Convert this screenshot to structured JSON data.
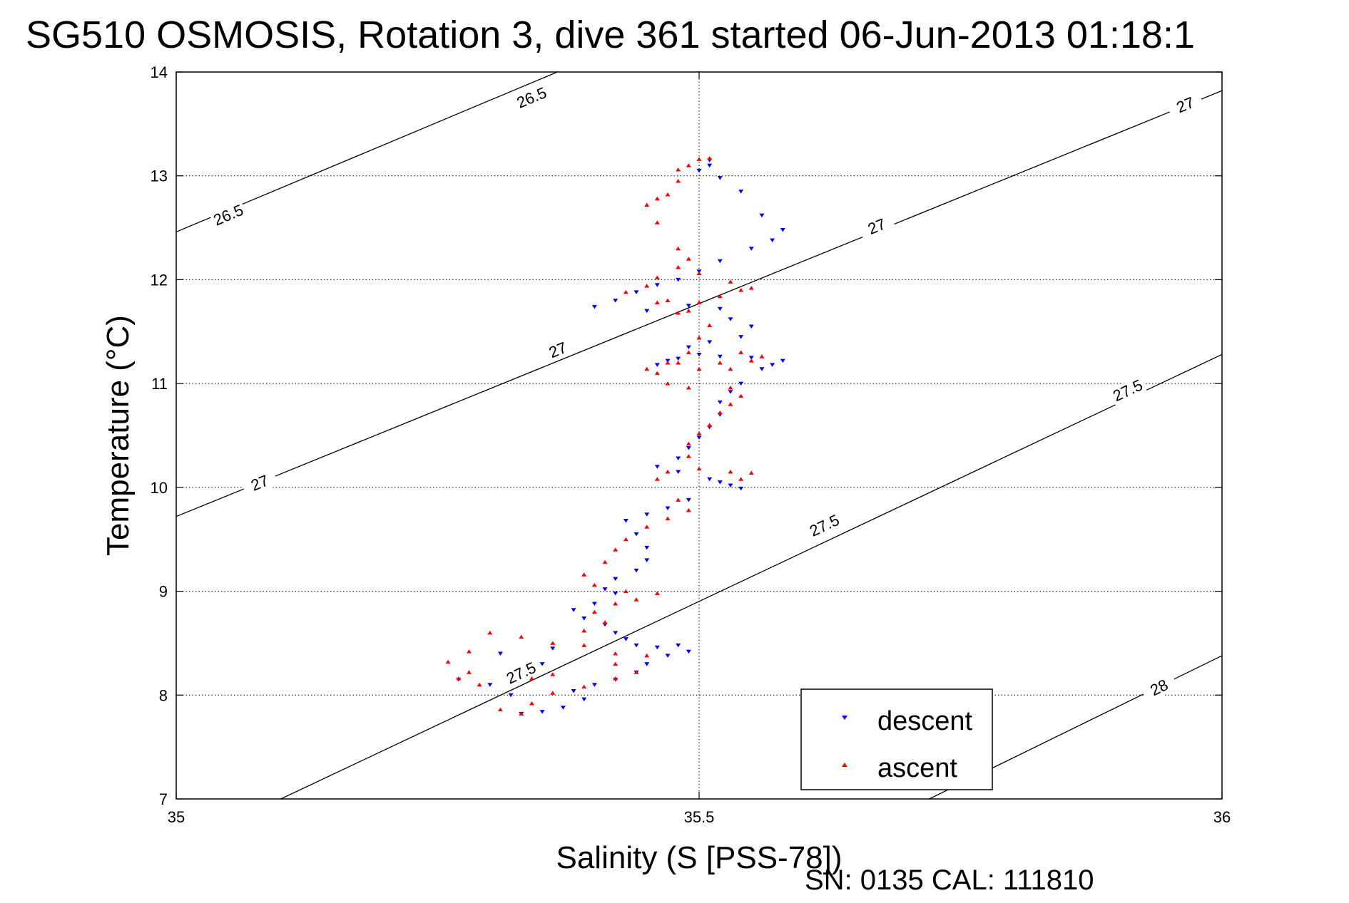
{
  "chart_data": {
    "type": "scatter",
    "title": "SG510 OSMOSIS, Rotation 3, dive 361 started 06-Jun-2013 01:18:1",
    "xlabel": "Salinity (S [PSS-78])",
    "ylabel": "Temperature (°C)",
    "footer": "SN: 0135  CAL: 111810",
    "xlim": [
      35,
      36
    ],
    "ylim": [
      7,
      14
    ],
    "x_ticks": [
      "35",
      "35.5",
      "36"
    ],
    "y_ticks": [
      "7",
      "8",
      "9",
      "10",
      "11",
      "12",
      "13",
      "14"
    ],
    "grid": "dotted",
    "legend_position": "bottom-right",
    "series": [
      {
        "name": "descent",
        "color": "#0000ff",
        "marker": "triangle-down",
        "points": [
          [
            35.51,
            13.15
          ],
          [
            35.51,
            13.1
          ],
          [
            35.5,
            13.05
          ],
          [
            35.52,
            12.98
          ],
          [
            35.54,
            12.85
          ],
          [
            35.56,
            12.62
          ],
          [
            35.58,
            12.48
          ],
          [
            35.57,
            12.38
          ],
          [
            35.55,
            12.3
          ],
          [
            35.52,
            12.18
          ],
          [
            35.5,
            12.08
          ],
          [
            35.48,
            12.0
          ],
          [
            35.46,
            11.95
          ],
          [
            35.44,
            11.88
          ],
          [
            35.42,
            11.8
          ],
          [
            35.4,
            11.74
          ],
          [
            35.45,
            11.7
          ],
          [
            35.49,
            11.75
          ],
          [
            35.52,
            11.72
          ],
          [
            35.53,
            11.62
          ],
          [
            35.55,
            11.55
          ],
          [
            35.54,
            11.45
          ],
          [
            35.51,
            11.4
          ],
          [
            35.49,
            11.35
          ],
          [
            35.5,
            11.28
          ],
          [
            35.47,
            11.22
          ],
          [
            35.46,
            11.18
          ],
          [
            35.48,
            11.24
          ],
          [
            35.52,
            11.26
          ],
          [
            35.55,
            11.25
          ],
          [
            35.57,
            11.18
          ],
          [
            35.58,
            11.22
          ],
          [
            35.56,
            11.14
          ],
          [
            35.54,
            11.0
          ],
          [
            35.53,
            10.92
          ],
          [
            35.52,
            10.82
          ],
          [
            35.52,
            10.7
          ],
          [
            35.51,
            10.58
          ],
          [
            35.5,
            10.48
          ],
          [
            35.49,
            10.38
          ],
          [
            35.48,
            10.28
          ],
          [
            35.46,
            10.2
          ],
          [
            35.48,
            10.15
          ],
          [
            35.51,
            10.08
          ],
          [
            35.53,
            10.02
          ],
          [
            35.54,
            9.99
          ],
          [
            35.52,
            10.05
          ],
          [
            35.49,
            9.88
          ],
          [
            35.47,
            9.8
          ],
          [
            35.45,
            9.74
          ],
          [
            35.43,
            9.68
          ],
          [
            35.44,
            9.55
          ],
          [
            35.45,
            9.42
          ],
          [
            35.45,
            9.3
          ],
          [
            35.44,
            9.2
          ],
          [
            35.42,
            9.12
          ],
          [
            35.41,
            9.02
          ],
          [
            35.42,
            8.98
          ],
          [
            35.4,
            8.88
          ],
          [
            35.38,
            8.82
          ],
          [
            35.39,
            8.74
          ],
          [
            35.41,
            8.68
          ],
          [
            35.42,
            8.6
          ],
          [
            35.43,
            8.54
          ],
          [
            35.44,
            8.48
          ],
          [
            35.46,
            8.46
          ],
          [
            35.48,
            8.48
          ],
          [
            35.49,
            8.42
          ],
          [
            35.47,
            8.38
          ],
          [
            35.45,
            8.3
          ],
          [
            35.44,
            8.22
          ],
          [
            35.42,
            8.15
          ],
          [
            35.4,
            8.1
          ],
          [
            35.38,
            8.04
          ],
          [
            35.39,
            7.96
          ],
          [
            35.37,
            7.88
          ],
          [
            35.35,
            7.84
          ],
          [
            35.33,
            7.82
          ],
          [
            35.32,
            8.0
          ],
          [
            35.3,
            8.1
          ],
          [
            35.27,
            8.15
          ],
          [
            35.35,
            8.3
          ],
          [
            35.31,
            8.4
          ],
          [
            35.36,
            8.45
          ]
        ]
      },
      {
        "name": "ascent",
        "color": "#ff0000",
        "marker": "triangle-up",
        "points": [
          [
            35.33,
            7.82
          ],
          [
            35.31,
            7.86
          ],
          [
            35.34,
            7.92
          ],
          [
            35.36,
            8.02
          ],
          [
            35.39,
            8.08
          ],
          [
            35.42,
            8.16
          ],
          [
            35.44,
            8.22
          ],
          [
            35.42,
            8.3
          ],
          [
            35.45,
            8.38
          ],
          [
            35.42,
            8.4
          ],
          [
            35.39,
            8.48
          ],
          [
            35.36,
            8.5
          ],
          [
            35.33,
            8.56
          ],
          [
            35.3,
            8.6
          ],
          [
            35.28,
            8.42
          ],
          [
            35.26,
            8.32
          ],
          [
            35.28,
            8.22
          ],
          [
            35.27,
            8.16
          ],
          [
            35.29,
            8.1
          ],
          [
            35.34,
            8.16
          ],
          [
            35.36,
            8.2
          ],
          [
            35.39,
            8.62
          ],
          [
            35.41,
            8.7
          ],
          [
            35.4,
            8.8
          ],
          [
            35.42,
            8.88
          ],
          [
            35.44,
            8.92
          ],
          [
            35.46,
            8.98
          ],
          [
            35.43,
            9.0
          ],
          [
            35.4,
            9.06
          ],
          [
            35.39,
            9.16
          ],
          [
            35.41,
            9.28
          ],
          [
            35.42,
            9.4
          ],
          [
            35.43,
            9.5
          ],
          [
            35.45,
            9.62
          ],
          [
            35.47,
            9.7
          ],
          [
            35.49,
            9.78
          ],
          [
            35.48,
            9.88
          ],
          [
            35.46,
            10.08
          ],
          [
            35.47,
            10.15
          ],
          [
            35.5,
            10.18
          ],
          [
            35.53,
            10.15
          ],
          [
            35.55,
            10.14
          ],
          [
            35.54,
            10.08
          ],
          [
            35.49,
            10.3
          ],
          [
            35.49,
            10.42
          ],
          [
            35.5,
            10.52
          ],
          [
            35.51,
            10.6
          ],
          [
            35.52,
            10.72
          ],
          [
            35.53,
            10.8
          ],
          [
            35.54,
            10.88
          ],
          [
            35.53,
            10.96
          ],
          [
            35.49,
            10.96
          ],
          [
            35.47,
            11.0
          ],
          [
            35.46,
            11.1
          ],
          [
            35.45,
            11.14
          ],
          [
            35.47,
            11.2
          ],
          [
            35.49,
            11.3
          ],
          [
            35.48,
            11.2
          ],
          [
            35.5,
            11.14
          ],
          [
            35.52,
            11.2
          ],
          [
            35.53,
            11.14
          ],
          [
            35.55,
            11.22
          ],
          [
            35.56,
            11.26
          ],
          [
            35.54,
            11.3
          ],
          [
            35.5,
            11.44
          ],
          [
            35.51,
            11.56
          ],
          [
            35.48,
            11.68
          ],
          [
            35.5,
            11.78
          ],
          [
            35.52,
            11.84
          ],
          [
            35.54,
            11.9
          ],
          [
            35.55,
            11.92
          ],
          [
            35.53,
            11.98
          ],
          [
            35.5,
            12.06
          ],
          [
            35.48,
            12.12
          ],
          [
            35.49,
            12.2
          ],
          [
            35.48,
            12.3
          ],
          [
            35.46,
            12.02
          ],
          [
            35.45,
            11.94
          ],
          [
            35.43,
            11.88
          ],
          [
            35.47,
            11.8
          ],
          [
            35.49,
            11.7
          ],
          [
            35.46,
            11.78
          ],
          [
            35.46,
            12.55
          ],
          [
            35.46,
            12.78
          ],
          [
            35.45,
            12.72
          ],
          [
            35.48,
            12.95
          ],
          [
            35.49,
            13.1
          ],
          [
            35.5,
            13.16
          ],
          [
            35.48,
            13.06
          ],
          [
            35.47,
            12.82
          ],
          [
            35.51,
            13.17
          ]
        ]
      }
    ],
    "contours": [
      {
        "label": "26.5",
        "points": [
          [
            35.0,
            12.46
          ],
          [
            35.4,
            14.15
          ]
        ],
        "label_positions": [
          [
            35.05,
            12.62
          ],
          [
            35.34,
            13.75
          ]
        ]
      },
      {
        "label": "27",
        "points": [
          [
            35.0,
            9.72
          ],
          [
            36.0,
            13.82
          ]
        ],
        "label_positions": [
          [
            35.08,
            10.04
          ],
          [
            35.365,
            11.32
          ],
          [
            35.67,
            12.51
          ],
          [
            35.965,
            13.68
          ]
        ]
      },
      {
        "label": "27.5",
        "points": [
          [
            35.1,
            7.0
          ],
          [
            36.0,
            11.28
          ]
        ],
        "label_positions": [
          [
            35.33,
            8.21
          ],
          [
            35.62,
            9.63
          ],
          [
            35.91,
            10.93
          ]
        ]
      },
      {
        "label": "28",
        "points": [
          [
            35.72,
            7.0
          ],
          [
            36.0,
            8.38
          ]
        ],
        "label_positions": [
          [
            35.94,
            8.07
          ]
        ]
      }
    ]
  }
}
